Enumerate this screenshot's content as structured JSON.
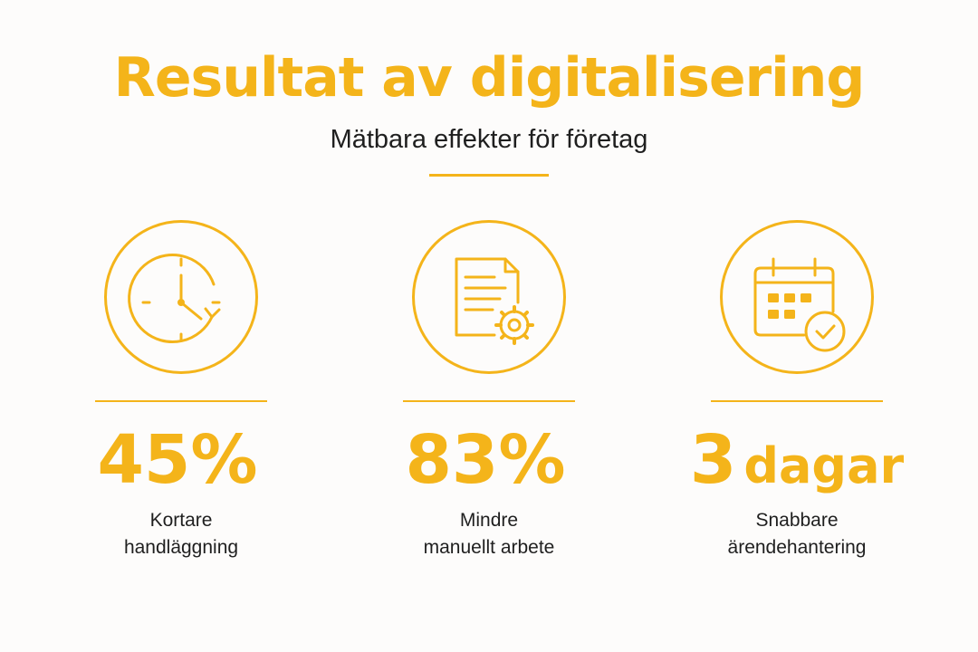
{
  "header": {
    "title": "Resultat av digitalisering",
    "subtitle": "Mätbara effekter för företag"
  },
  "colors": {
    "accent": "#f4b41a",
    "text": "#1f1f1f",
    "background": "#fdfcfb"
  },
  "stats": [
    {
      "icon": "clock-icon",
      "value": "45%",
      "unit": "",
      "label_line1": "Kortare",
      "label_line2": "handläggning"
    },
    {
      "icon": "document-gear-icon",
      "value": "83%",
      "unit": "",
      "label_line1": "Mindre",
      "label_line2": "manuellt arbete"
    },
    {
      "icon": "calendar-check-icon",
      "value": "3",
      "unit": "dagar",
      "label_line1": "Snabbare",
      "label_line2": "ärendehantering"
    }
  ]
}
